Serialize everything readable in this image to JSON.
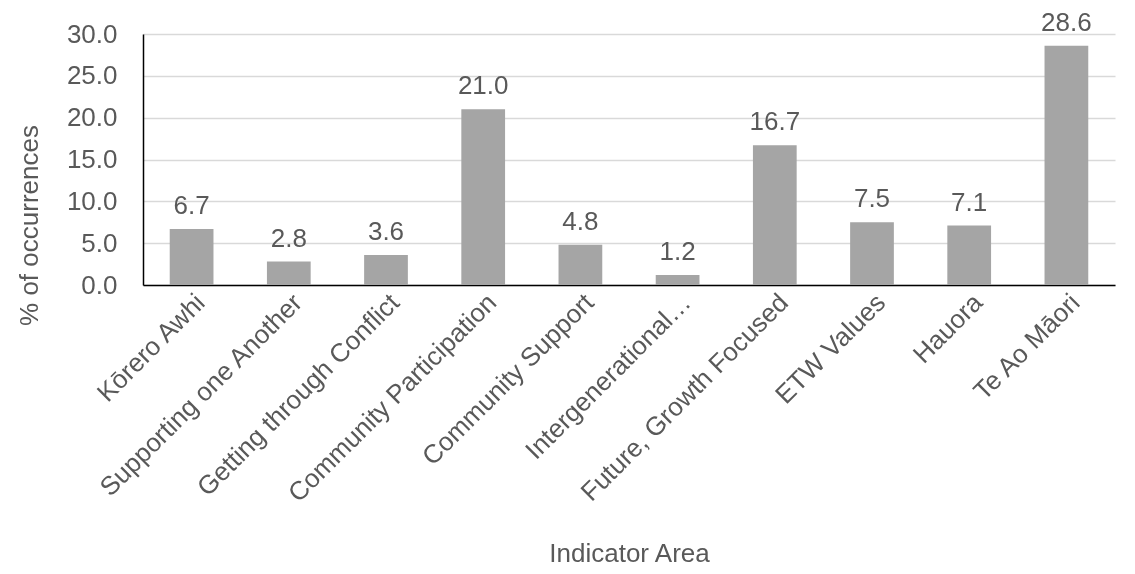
{
  "chart_data": {
    "type": "bar",
    "xlabel": "Indicator Area",
    "ylabel": "% of occurrences",
    "categories": [
      "Kōrero Awhi",
      "Supporting one Another",
      "Getting through Conflict",
      "Community Participation",
      "Community Support",
      "Intergenerational…",
      "Future, Growth Focused",
      "ETW Values",
      "Hauora",
      "Te Ao Māori"
    ],
    "values": [
      6.7,
      2.8,
      3.6,
      21.0,
      4.8,
      1.2,
      16.7,
      7.5,
      7.1,
      28.6
    ],
    "value_labels": [
      "6.7",
      "2.8",
      "3.6",
      "21.0",
      "4.8",
      "1.2",
      "16.7",
      "7.5",
      "7.1",
      "28.6"
    ],
    "color": "#a5a5a5",
    "ylim": [
      0,
      30
    ],
    "yticks": [
      {
        "value": 0,
        "label": "0.0"
      },
      {
        "value": 5,
        "label": "5.0"
      },
      {
        "value": 10,
        "label": "10.0"
      },
      {
        "value": 15,
        "label": "15.0"
      },
      {
        "value": 20,
        "label": "20.0"
      },
      {
        "value": 25,
        "label": "25.0"
      },
      {
        "value": 30,
        "label": "30.0"
      }
    ],
    "grid": "y"
  }
}
